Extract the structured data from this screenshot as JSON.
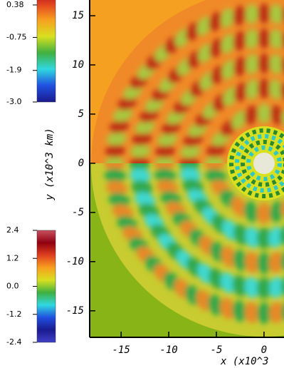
{
  "chart_data": {
    "type": "field",
    "xlabel": "x  (x10^3",
    "ylabel": "y  (x10^3  km)",
    "xlim": [
      -18.3,
      2.1
    ],
    "xticks": [
      -15,
      -10,
      -5,
      0
    ],
    "ylim": [
      -17.7,
      16.6
    ],
    "yticks": [
      15,
      10,
      5,
      0,
      -5,
      -10,
      -15
    ],
    "colorbars": [
      {
        "clim": [
          -3.0,
          1.0
        ],
        "ticks": [
          0.38,
          -0.75,
          -1.9,
          {
            "value": -3,
            "label": "-3.0"
          }
        ],
        "colors": [
          "#1a1a90",
          "#2050e0",
          "#30d8e0",
          "#40b040",
          "#d8e020",
          "#f8a020",
          "#e04020",
          "#900010"
        ]
      },
      {
        "clim": [
          -2.4,
          2.4
        ],
        "ticks": [
          2.4,
          1.2,
          {
            "value": 0,
            "label": "0.0"
          },
          -1.2,
          -2.4
        ],
        "colors": [
          "#4040c8",
          "#1a1a90",
          "#2050e0",
          "#30d8e0",
          "#40b040",
          "#d8e020",
          "#f8a020",
          "#e04020",
          "#900010",
          "#c85060"
        ]
      }
    ]
  }
}
